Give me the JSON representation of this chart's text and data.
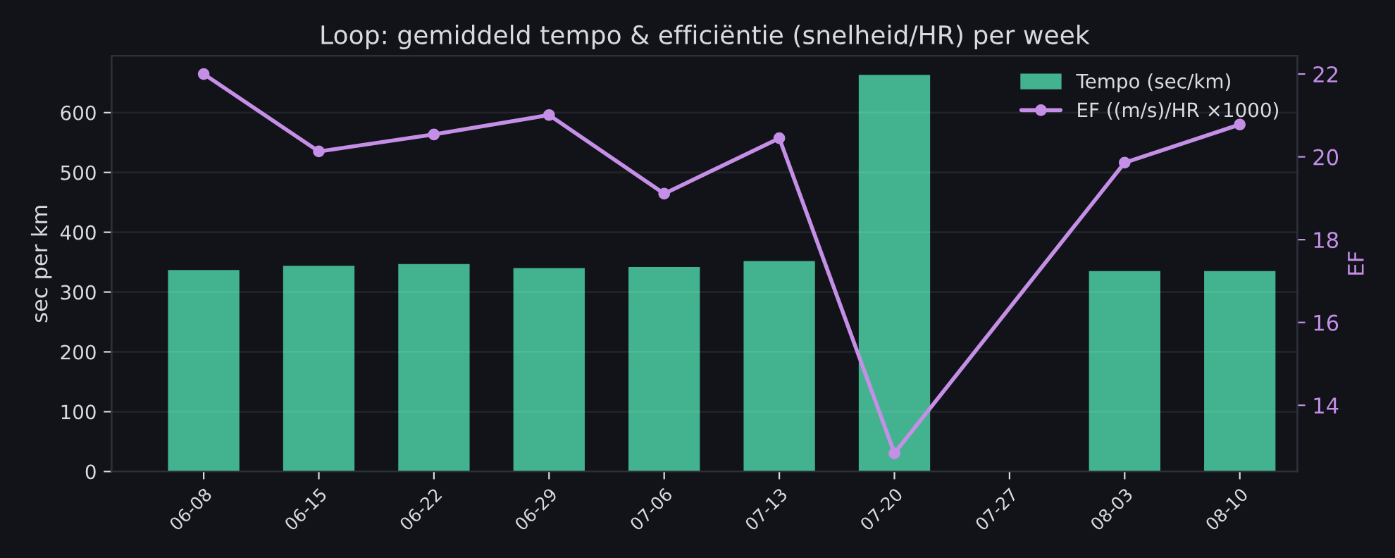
{
  "chart_data": {
    "type": "bar",
    "title": "Loop: gemiddeld tempo & efficiëntie (snelheid/HR) per week",
    "categories": [
      "06-08",
      "06-15",
      "06-22",
      "06-29",
      "07-06",
      "07-13",
      "07-20",
      "07-27",
      "08-03",
      "08-10"
    ],
    "series": [
      {
        "name": "Tempo (sec/km)",
        "color": "#43b38f",
        "values": [
          337,
          344,
          347,
          340,
          342,
          352,
          663,
          null,
          335,
          335
        ]
      },
      {
        "name": "EF ((m/s)/HR ×1000)",
        "type": "line",
        "axis": "y2",
        "color": "#c58fe8",
        "marker": "circle",
        "line_style": "solid",
        "values": [
          22.0,
          20.13,
          20.54,
          21.01,
          19.11,
          20.45,
          12.84,
          null,
          19.86,
          20.78
        ]
      }
    ],
    "ylabel": "sec per km",
    "y2label": "EF",
    "ylim": [
      0,
      695
    ],
    "yticks": [
      0,
      100,
      200,
      300,
      400,
      500,
      600
    ],
    "y2lim": [
      12.4,
      22.44
    ],
    "y2ticks": [
      14,
      16,
      18,
      20,
      22
    ],
    "grid": "y",
    "legend": "top right"
  }
}
